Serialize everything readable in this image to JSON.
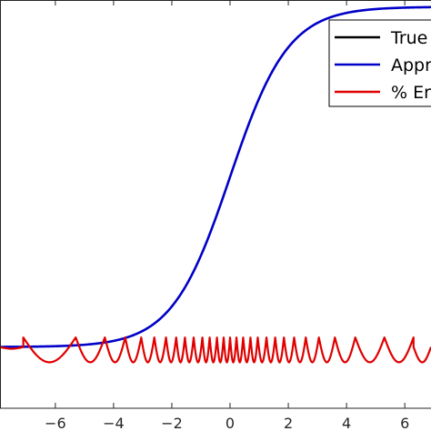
{
  "chart_data": {
    "type": "line",
    "title": "",
    "xlabel": "",
    "ylabel": "",
    "xlim": [
      -7.9,
      6.9
    ],
    "ylim": [
      -0.18,
      1.02
    ],
    "x_ticks": [
      -6,
      -4,
      -2,
      0,
      2,
      4,
      6
    ],
    "x_tick_labels": [
      "−6",
      "−4",
      "−2",
      "0",
      "2",
      "4",
      "6"
    ],
    "grid": false,
    "legend": {
      "position": "top-right",
      "entries": [
        {
          "label": "True",
          "color": "#000000"
        },
        {
          "label": "Appr",
          "color": "#0000c8"
        },
        {
          "label": "% Er",
          "color": "#e00000"
        }
      ]
    },
    "series": [
      {
        "name": "True",
        "color": "#000000",
        "function": "logistic",
        "formula": "1 / (1 + exp(-x))",
        "x_range": [
          -7.9,
          6.9
        ]
      },
      {
        "name": "Appr",
        "color": "#0000c8",
        "function": "logistic",
        "formula": "1 / (1 + exp(-x))",
        "x_range": [
          -7.9,
          6.9
        ]
      },
      {
        "name": "% Er",
        "color": "#e00000",
        "description": "oscillating error, baseline near 0, peaks up to ~0.03",
        "segments": [
          {
            "x_start": -7.9,
            "x_end": -7.1,
            "trough": -0.005,
            "peak": 0.0
          },
          {
            "x_start": -7.1,
            "x_end": -5.3,
            "trough": -0.045,
            "peak": 0.028
          },
          {
            "x_start": -5.3,
            "x_end": -4.3,
            "trough": -0.045,
            "peak": 0.028
          },
          {
            "x_start": -4.3,
            "x_end": -3.6,
            "trough": -0.045,
            "peak": 0.028
          },
          {
            "x_start": -3.6,
            "x_end": -3.05,
            "trough": -0.045,
            "peak": 0.028
          },
          {
            "x_start": -3.05,
            "x_end": -2.6,
            "trough": -0.045,
            "peak": 0.028
          },
          {
            "x_start": -2.6,
            "x_end": -2.2,
            "trough": -0.045,
            "peak": 0.028
          },
          {
            "x_start": -2.2,
            "x_end": -1.85,
            "trough": -0.045,
            "peak": 0.028
          },
          {
            "x_start": -1.85,
            "x_end": -1.55,
            "trough": -0.045,
            "peak": 0.028
          },
          {
            "x_start": -1.55,
            "x_end": -1.25,
            "trough": -0.045,
            "peak": 0.028
          },
          {
            "x_start": -1.25,
            "x_end": -0.95,
            "trough": -0.045,
            "peak": 0.028
          },
          {
            "x_start": -0.95,
            "x_end": -0.7,
            "trough": -0.045,
            "peak": 0.028
          },
          {
            "x_start": -0.7,
            "x_end": -0.45,
            "trough": -0.045,
            "peak": 0.028
          },
          {
            "x_start": -0.45,
            "x_end": -0.22,
            "trough": -0.045,
            "peak": 0.028
          },
          {
            "x_start": -0.22,
            "x_end": 0.0,
            "trough": -0.045,
            "peak": 0.028
          },
          {
            "x_start": 0.0,
            "x_end": 0.22,
            "trough": -0.045,
            "peak": 0.028
          },
          {
            "x_start": 0.22,
            "x_end": 0.45,
            "trough": -0.045,
            "peak": 0.028
          },
          {
            "x_start": 0.45,
            "x_end": 0.7,
            "trough": -0.045,
            "peak": 0.028
          },
          {
            "x_start": 0.7,
            "x_end": 0.95,
            "trough": -0.045,
            "peak": 0.028
          },
          {
            "x_start": 0.95,
            "x_end": 1.25,
            "trough": -0.045,
            "peak": 0.028
          },
          {
            "x_start": 1.25,
            "x_end": 1.55,
            "trough": -0.045,
            "peak": 0.028
          },
          {
            "x_start": 1.55,
            "x_end": 1.85,
            "trough": -0.045,
            "peak": 0.028
          },
          {
            "x_start": 1.85,
            "x_end": 2.2,
            "trough": -0.045,
            "peak": 0.028
          },
          {
            "x_start": 2.2,
            "x_end": 2.6,
            "trough": -0.045,
            "peak": 0.028
          },
          {
            "x_start": 2.6,
            "x_end": 3.05,
            "trough": -0.045,
            "peak": 0.028
          },
          {
            "x_start": 3.05,
            "x_end": 3.6,
            "trough": -0.045,
            "peak": 0.028
          },
          {
            "x_start": 3.6,
            "x_end": 4.3,
            "trough": -0.045,
            "peak": 0.028
          },
          {
            "x_start": 4.3,
            "x_end": 5.3,
            "trough": -0.045,
            "peak": 0.028
          },
          {
            "x_start": 5.3,
            "x_end": 6.3,
            "trough": -0.045,
            "peak": 0.028
          },
          {
            "x_start": 6.3,
            "x_end": 6.9,
            "trough": -0.045,
            "peak": 0.0
          }
        ]
      }
    ]
  }
}
